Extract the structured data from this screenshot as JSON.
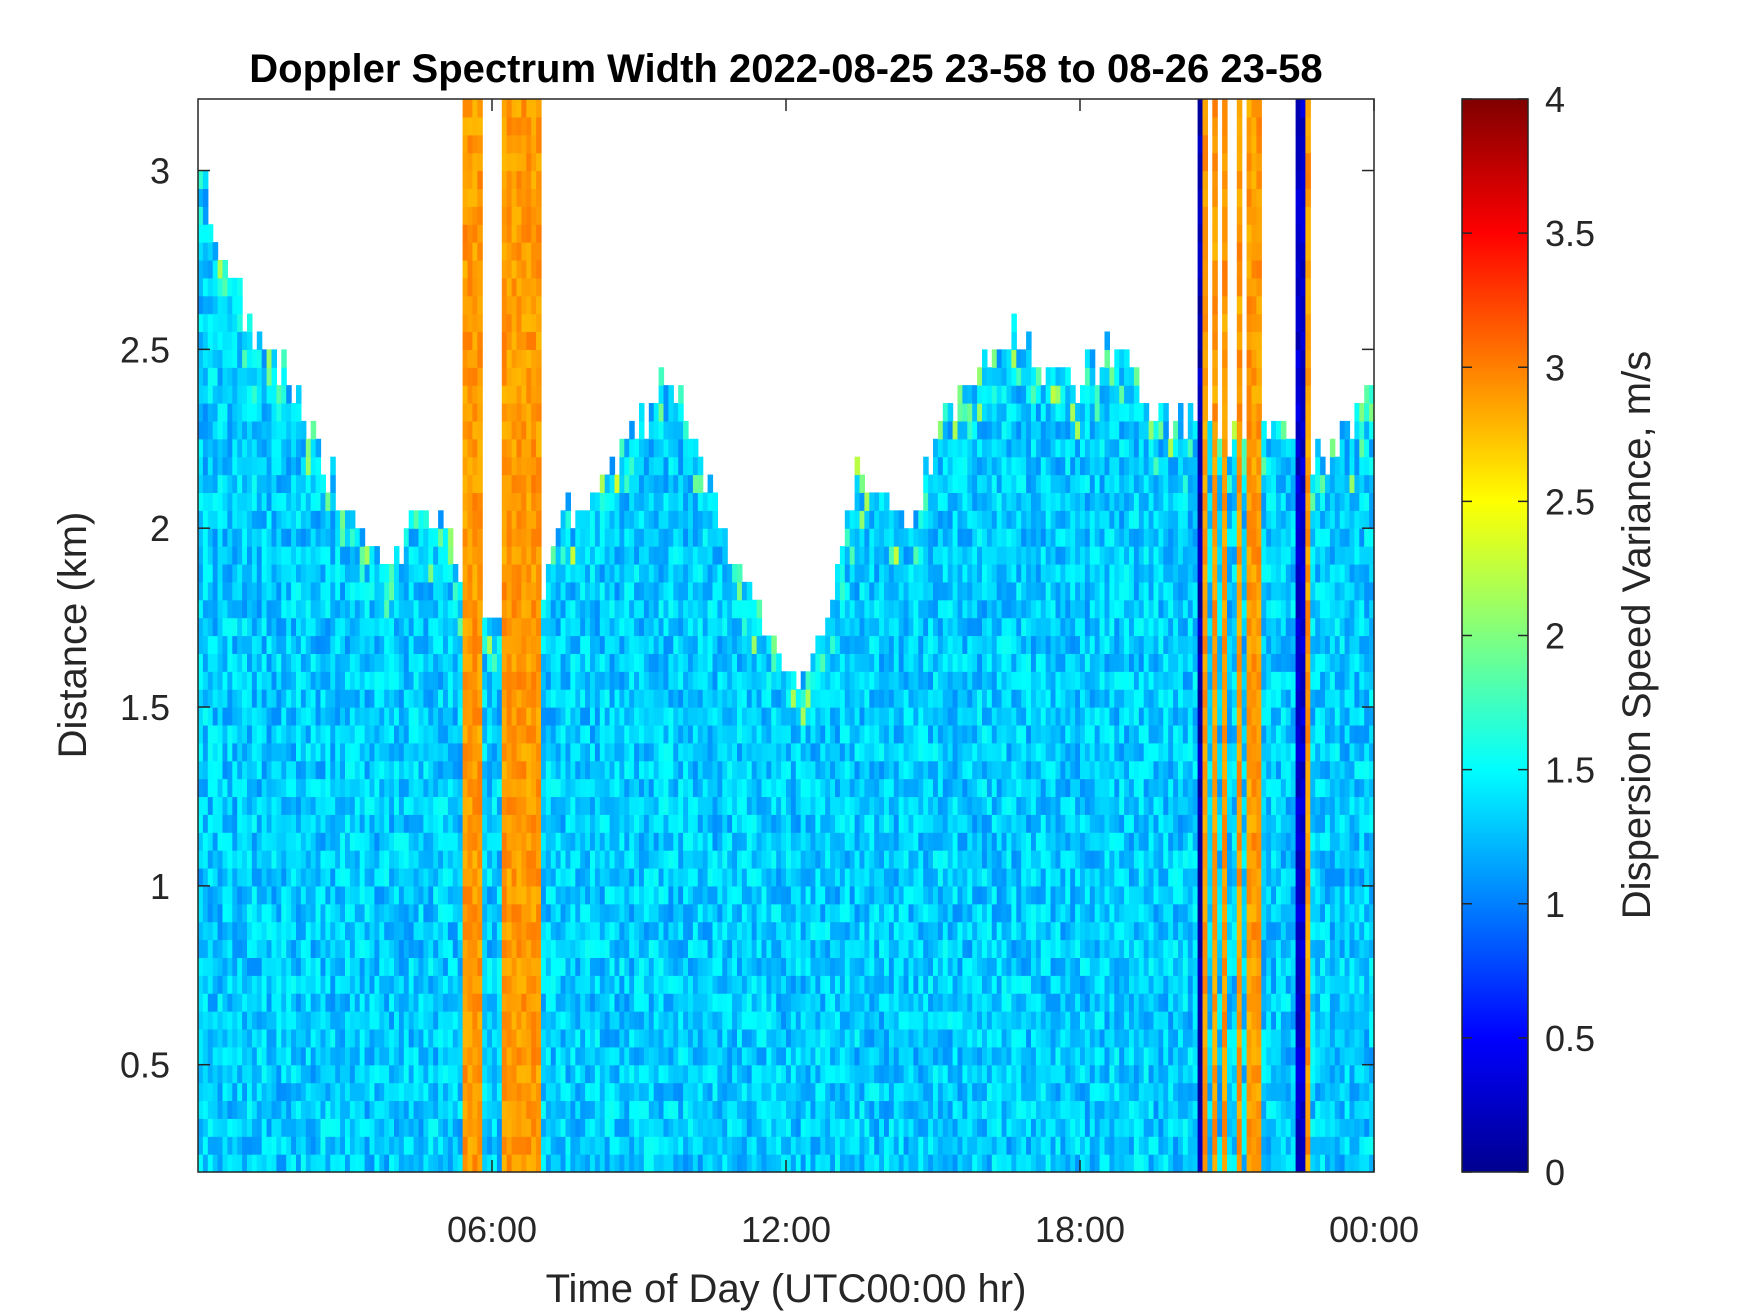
{
  "chart_data": {
    "type": "heatmap",
    "title": "Doppler Spectrum Width 2022-08-25 23-58 to 08-26 23-58",
    "xlabel": "Time of Day (UTC00:00 hr)",
    "ylabel": "Distance (km)",
    "x_range_hours": [
      0,
      24
    ],
    "xlim": [
      "2022-08-25 23:58",
      "2022-08-26 23:58"
    ],
    "x_ticks": [
      {
        "value": 6,
        "label": "06:00"
      },
      {
        "value": 12,
        "label": "12:00"
      },
      {
        "value": 18,
        "label": "18:00"
      },
      {
        "value": 24,
        "label": "00:00"
      }
    ],
    "ylim": [
      0.2,
      3.2
    ],
    "y_ticks": [
      {
        "value": 0.5,
        "label": "0.5"
      },
      {
        "value": 1,
        "label": "1"
      },
      {
        "value": 1.5,
        "label": "1.5"
      },
      {
        "value": 2,
        "label": "2"
      },
      {
        "value": 2.5,
        "label": "2.5"
      },
      {
        "value": 3,
        "label": "3"
      }
    ],
    "colorbar": {
      "label": "Dispersion Speed Variance, m/s",
      "colormap": "jet",
      "range": [
        0,
        4
      ],
      "ticks": [
        {
          "value": 0,
          "label": "0"
        },
        {
          "value": 0.5,
          "label": "0.5"
        },
        {
          "value": 1,
          "label": "1"
        },
        {
          "value": 1.5,
          "label": "1.5"
        },
        {
          "value": 2,
          "label": "2"
        },
        {
          "value": 2.5,
          "label": "2.5"
        },
        {
          "value": 3,
          "label": "3"
        },
        {
          "value": 3.5,
          "label": "3.5"
        },
        {
          "value": 4,
          "label": "4"
        }
      ]
    },
    "typical_value_ms": 1.3,
    "data_top_km_profile": [
      {
        "t": 0.0,
        "top": 3.1
      },
      {
        "t": 0.5,
        "top": 2.7
      },
      {
        "t": 1.0,
        "top": 2.6
      },
      {
        "t": 1.5,
        "top": 2.5
      },
      {
        "t": 2.0,
        "top": 2.35
      },
      {
        "t": 2.5,
        "top": 2.2
      },
      {
        "t": 3.0,
        "top": 2.05
      },
      {
        "t": 3.5,
        "top": 1.9
      },
      {
        "t": 4.0,
        "top": 1.9
      },
      {
        "t": 4.5,
        "top": 2.05
      },
      {
        "t": 5.0,
        "top": 2.0
      },
      {
        "t": 5.5,
        "top": 1.85
      },
      {
        "t": 6.0,
        "top": 1.8
      },
      {
        "t": 6.5,
        "top": 1.6
      },
      {
        "t": 7.0,
        "top": 1.8
      },
      {
        "t": 7.5,
        "top": 2.05
      },
      {
        "t": 8.0,
        "top": 2.1
      },
      {
        "t": 8.5,
        "top": 2.2
      },
      {
        "t": 9.0,
        "top": 2.3
      },
      {
        "t": 9.5,
        "top": 2.4
      },
      {
        "t": 10.0,
        "top": 2.3
      },
      {
        "t": 10.5,
        "top": 2.1
      },
      {
        "t": 11.0,
        "top": 1.9
      },
      {
        "t": 11.5,
        "top": 1.75
      },
      {
        "t": 12.0,
        "top": 1.6
      },
      {
        "t": 12.5,
        "top": 1.65
      },
      {
        "t": 13.0,
        "top": 1.85
      },
      {
        "t": 13.5,
        "top": 2.2
      },
      {
        "t": 14.0,
        "top": 2.1
      },
      {
        "t": 14.5,
        "top": 2.0
      },
      {
        "t": 15.0,
        "top": 2.2
      },
      {
        "t": 15.5,
        "top": 2.35
      },
      {
        "t": 16.0,
        "top": 2.45
      },
      {
        "t": 16.5,
        "top": 2.55
      },
      {
        "t": 17.0,
        "top": 2.5
      },
      {
        "t": 17.5,
        "top": 2.45
      },
      {
        "t": 18.0,
        "top": 2.4
      },
      {
        "t": 18.5,
        "top": 2.5
      },
      {
        "t": 19.0,
        "top": 2.45
      },
      {
        "t": 19.5,
        "top": 2.35
      },
      {
        "t": 20.0,
        "top": 2.3
      },
      {
        "t": 20.5,
        "top": 2.3
      },
      {
        "t": 21.0,
        "top": 2.25
      },
      {
        "t": 21.5,
        "top": 2.2
      },
      {
        "t": 22.0,
        "top": 2.3
      },
      {
        "t": 22.5,
        "top": 2.2
      },
      {
        "t": 23.0,
        "top": 2.2
      },
      {
        "t": 23.5,
        "top": 2.3
      },
      {
        "t": 24.0,
        "top": 2.4
      }
    ],
    "high_value_streaks": [
      {
        "t_start": 5.45,
        "t_end": 5.75,
        "value": 2.9
      },
      {
        "t_start": 6.25,
        "t_end": 7.0,
        "value": 2.9
      },
      {
        "t_start": 20.5,
        "t_end": 20.6,
        "value": 2.9
      },
      {
        "t_start": 20.7,
        "t_end": 20.8,
        "value": 2.9
      },
      {
        "t_start": 20.95,
        "t_end": 21.02,
        "value": 2.9
      },
      {
        "t_start": 21.25,
        "t_end": 21.32,
        "value": 2.9
      },
      {
        "t_start": 21.45,
        "t_end": 21.65,
        "value": 2.9
      },
      {
        "t_start": 22.6,
        "t_end": 22.7,
        "value": 2.9
      }
    ],
    "low_value_streaks": [
      {
        "t_start": 20.4,
        "t_end": 20.5,
        "value": 0.2
      },
      {
        "t_start": 21.35,
        "t_end": 21.45,
        "value": 0.2
      },
      {
        "t_start": 22.45,
        "t_end": 22.55,
        "value": 0.3
      }
    ]
  }
}
